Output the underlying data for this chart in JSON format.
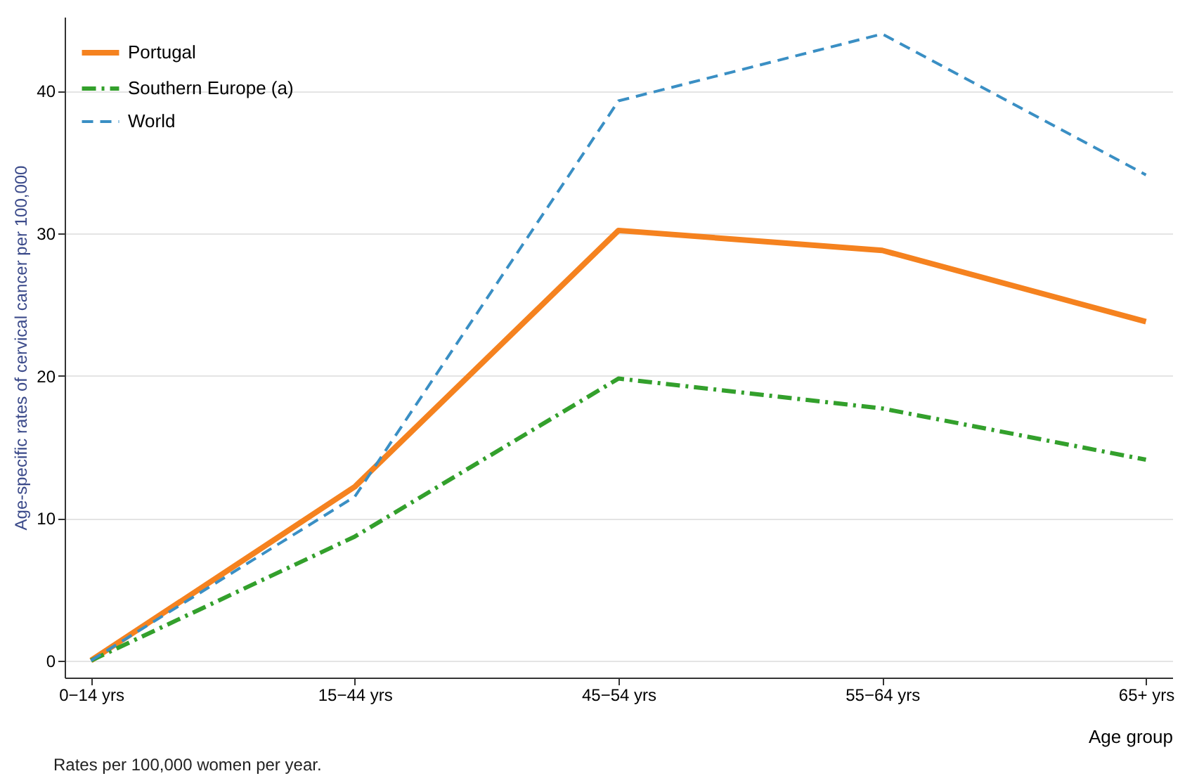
{
  "chart_data": {
    "type": "line",
    "xlabel": "Age group",
    "ylabel": "Age-specific rates of cervical cancer per 100,000",
    "categories": [
      "0−14 yrs",
      "15−44 yrs",
      "45−54 yrs",
      "55−64 yrs",
      "65+ yrs"
    ],
    "series": [
      {
        "name": "Portugal",
        "color": "#f5821f",
        "line_style": "solid",
        "values": [
          0,
          12.2,
          30.2,
          28.8,
          23.8
        ]
      },
      {
        "name": "Southern Europe (a)",
        "color": "#33a02c",
        "line_style": "dashdot",
        "values": [
          0,
          8.7,
          19.8,
          17.7,
          14.1
        ]
      },
      {
        "name": "World",
        "color": "#3a8fc4",
        "line_style": "dashed",
        "values": [
          0,
          11.5,
          39.3,
          44.0,
          34.1
        ]
      }
    ],
    "ylim": [
      -1.2,
      45.2
    ],
    "yticks": [
      0,
      10,
      20,
      30,
      40
    ],
    "grid": "y",
    "legend": "top left",
    "marker": "none",
    "annotations": [
      "Rates per 100,000 women per year."
    ]
  }
}
